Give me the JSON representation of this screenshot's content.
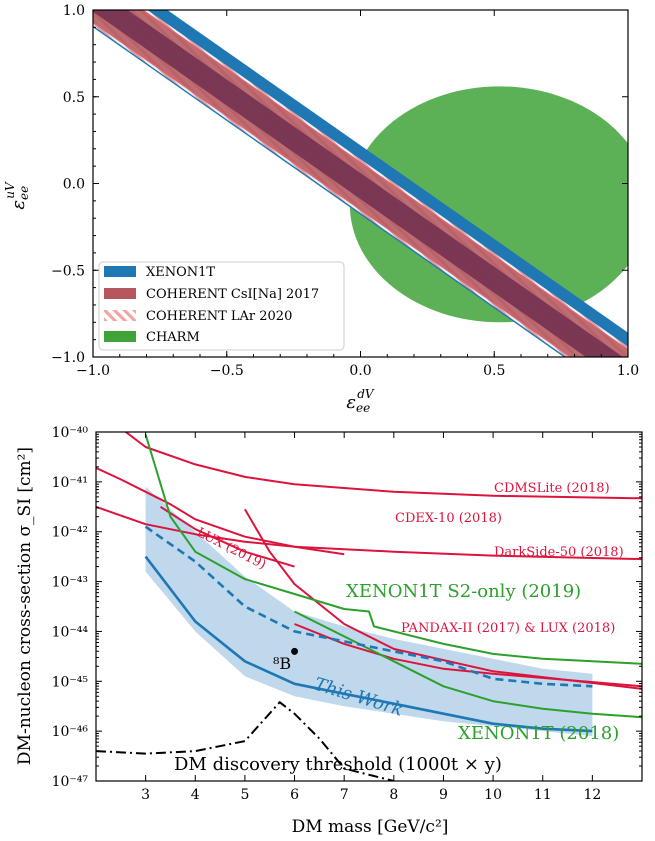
{
  "colors": {
    "xenon": "#1f77b4",
    "csi": "#b5575d",
    "csi_overlap": "#6e2f4f",
    "lar_hatch": "#f4a5a3",
    "charm": "#3fa33a",
    "limit_red": "#dc143c",
    "limit_green": "#2ca02c",
    "this_work": "#1f77b4",
    "this_work_band": "#a9cbe6",
    "threshold": "#000000"
  },
  "chart_data": [
    {
      "type": "area",
      "xlabel": "ε_ee^dV",
      "ylabel": "ε_ee^uV",
      "xlim": [
        -1.0,
        1.0
      ],
      "ylim": [
        -1.0,
        1.0
      ],
      "xticks": [
        "−1.0",
        "−0.5",
        "0.0",
        "0.5",
        "1.0"
      ],
      "yticks": [
        "−1.0",
        "−0.5",
        "0.0",
        "0.5",
        "1.0"
      ],
      "legend_position": "lower-left",
      "series": [
        {
          "name": "XENON1T",
          "kind": "band",
          "slope": -1.08,
          "intercept_low": -0.18,
          "intercept_high": 0.22
        },
        {
          "name": "COHERENT CsI[Na] 2017",
          "kind": "band",
          "slope": -1.08,
          "intercept_low": -0.15,
          "intercept_high": 0.12,
          "inner_low": -0.09,
          "inner_high": 0.06
        },
        {
          "name": "COHERENT LAr 2020",
          "kind": "band",
          "slope": -1.08,
          "intercept_low": -0.17,
          "intercept_high": 0.14
        },
        {
          "name": "CHARM",
          "kind": "ellipse",
          "center": [
            0.52,
            -0.12
          ],
          "semi_axes": [
            0.56,
            0.68
          ]
        }
      ]
    },
    {
      "type": "line",
      "xlabel": "DM mass [GeV/c²]",
      "ylabel": "DM-nucleon cross-section σ_SI [cm²]",
      "xlim": [
        2,
        13
      ],
      "ylim_log10": [
        -47,
        -40
      ],
      "xticks": [
        "3",
        "4",
        "5",
        "6",
        "7",
        "8",
        "9",
        "10",
        "11",
        "12"
      ],
      "yticks": [
        "10⁻⁴⁰",
        "10⁻⁴¹",
        "10⁻⁴²",
        "10⁻⁴³",
        "10⁻⁴⁴",
        "10⁻⁴⁵",
        "10⁻⁴⁶",
        "10⁻⁴⁷"
      ],
      "series": [
        {
          "name": "CDMSLite (2018)",
          "color": "limit_red",
          "x": [
            2.6,
            3,
            4,
            5,
            6,
            8,
            10,
            13
          ],
          "log10_y": [
            -40.0,
            -40.3,
            -40.65,
            -40.9,
            -41.05,
            -41.2,
            -41.28,
            -41.33
          ]
        },
        {
          "name": "CDEX-10 (2018)",
          "color": "limit_red",
          "x": [
            2,
            2.5,
            3,
            3.5,
            4,
            5,
            6,
            7
          ],
          "log10_y": [
            -40.72,
            -40.95,
            -41.2,
            -41.45,
            -41.75,
            -42.1,
            -42.3,
            -42.45
          ]
        },
        {
          "name": "DarkSide-50 (2018)",
          "color": "limit_red",
          "x": [
            2,
            3,
            4,
            5,
            6,
            8,
            10,
            13
          ],
          "log10_y": [
            -41.5,
            -41.85,
            -42.05,
            -42.2,
            -42.3,
            -42.4,
            -42.48,
            -42.55
          ]
        },
        {
          "name": "LUX (2019)",
          "color": "limit_red",
          "x": [
            3.3,
            4,
            5,
            6
          ],
          "log10_y": [
            -41.5,
            -41.95,
            -42.4,
            -42.7
          ]
        },
        {
          "name": "PANDAX-II (2017) & LUX (2018)",
          "color": "limit_red",
          "x": [
            5,
            5.5,
            6,
            7,
            8,
            10,
            13
          ],
          "log10_y": [
            -41.55,
            -42.4,
            -43.05,
            -43.85,
            -44.35,
            -44.8,
            -45.15
          ]
        },
        {
          "name": "PANDAX-II (2017) & LUX (2018)",
          "color": "limit_red",
          "x": [
            6,
            7,
            8,
            9,
            10,
            13
          ],
          "log10_y": [
            -43.85,
            -44.25,
            -44.55,
            -44.75,
            -44.85,
            -45.1
          ]
        },
        {
          "name": "XENON1T S2-only (2019)",
          "color": "limit_green",
          "x": [
            3,
            3.5,
            4,
            5,
            6,
            7,
            7.5,
            7.6,
            8,
            9,
            10,
            11,
            12,
            13
          ],
          "log10_y": [
            -40.05,
            -41.7,
            -42.4,
            -42.95,
            -43.25,
            -43.55,
            -43.6,
            -43.9,
            -44.0,
            -44.25,
            -44.45,
            -44.55,
            -44.6,
            -44.65
          ]
        },
        {
          "name": "XENON1T (2018)",
          "color": "limit_green",
          "x": [
            6,
            7,
            8,
            9,
            10,
            11,
            12,
            13
          ],
          "log10_y": [
            -43.6,
            -44.1,
            -44.6,
            -45.1,
            -45.4,
            -45.55,
            -45.65,
            -45.72
          ]
        },
        {
          "name": "This Work",
          "color": "this_work",
          "style": "solid",
          "x": [
            3,
            4,
            5,
            6,
            7,
            8,
            9,
            10,
            11,
            12
          ],
          "log10_y": [
            -42.5,
            -43.8,
            -44.6,
            -45.05,
            -45.25,
            -45.45,
            -45.65,
            -45.85,
            -45.95,
            -46.0
          ]
        },
        {
          "name": "This Work",
          "color": "this_work",
          "style": "dashed",
          "x": [
            3,
            4,
            5,
            6,
            7,
            8,
            9,
            10,
            11,
            12
          ],
          "log10_y": [
            -41.9,
            -42.6,
            -43.5,
            -44.0,
            -44.2,
            -44.4,
            -44.6,
            -44.95,
            -45.05,
            -45.1
          ]
        },
        {
          "name": "DM discovery threshold (1000t × y)",
          "color": "threshold",
          "style": "dashdot",
          "x": [
            2,
            3,
            4,
            5,
            5.7,
            6,
            6.5,
            7,
            8
          ],
          "log10_y": [
            -46.4,
            -46.45,
            -46.4,
            -46.2,
            -45.42,
            -45.65,
            -46.15,
            -46.75,
            -47.0
          ]
        }
      ],
      "band": {
        "name": "This Work",
        "x": [
          3,
          4,
          5,
          6,
          7,
          8,
          9,
          10,
          11,
          12
        ],
        "log10_low": [
          -42.8,
          -44.0,
          -44.9,
          -45.3,
          -45.5,
          -45.65,
          -45.8,
          -45.9,
          -46.0,
          -46.1
        ],
        "log10_high": [
          -41.1,
          -42.0,
          -42.9,
          -43.6,
          -43.9,
          -44.15,
          -44.35,
          -44.55,
          -44.75,
          -44.85
        ]
      },
      "marker": {
        "label": "⁸B",
        "x": 6.0,
        "log10_y": -44.4
      },
      "labels": {
        "cdmslite": "CDMSLite (2018)",
        "cdex": "CDEX-10 (2018)",
        "darkside": "DarkSide-50 (2018)",
        "lux2019": "LUX (2019)",
        "xenon_s2": "XENON1T S2-only (2019)",
        "pandax": "PANDAX-II (2017) & LUX (2018)",
        "this_work": "This Work",
        "xenon2018": "XENON1T (2018)",
        "threshold": "DM discovery threshold (1000t × y)"
      }
    }
  ]
}
